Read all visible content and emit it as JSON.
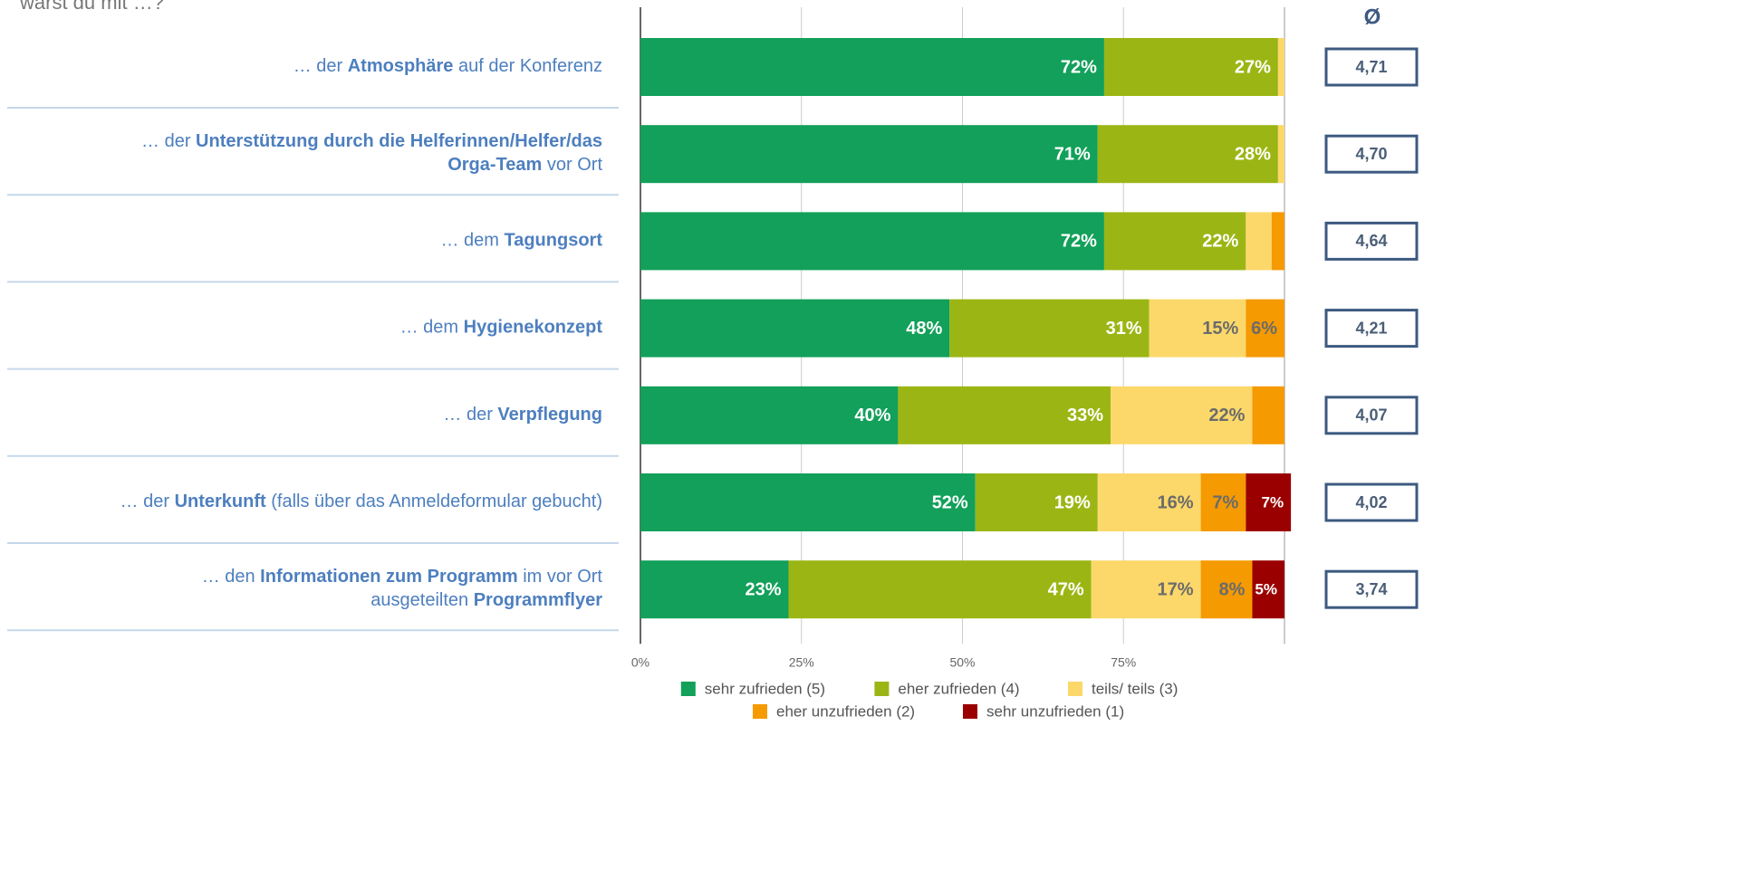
{
  "chart_data": {
    "type": "stacked_bar_horizontal",
    "title": "warst du mit …?",
    "categories": [
      [
        [
          {
            "text": "… der ",
            "bold": false
          },
          {
            "text": "Atmosphäre",
            "bold": true
          },
          {
            "text": " auf der Konferenz",
            "bold": false
          }
        ]
      ],
      [
        [
          {
            "text": "… der ",
            "bold": false
          },
          {
            "text": "Unterstützung durch die Helferinnen/Helfer/das",
            "bold": true
          }
        ],
        [
          {
            "text": "Orga-Team",
            "bold": true
          },
          {
            "text": " vor Ort",
            "bold": false
          }
        ]
      ],
      [
        [
          {
            "text": "… dem ",
            "bold": false
          },
          {
            "text": "Tagungsort",
            "bold": true
          }
        ]
      ],
      [
        [
          {
            "text": "… dem ",
            "bold": false
          },
          {
            "text": "Hygienekonzept",
            "bold": true
          }
        ]
      ],
      [
        [
          {
            "text": "… der ",
            "bold": false
          },
          {
            "text": "Verpflegung",
            "bold": true
          }
        ]
      ],
      [
        [
          {
            "text": "… der ",
            "bold": false
          },
          {
            "text": "Unterkunft",
            "bold": true
          },
          {
            "text": " (falls über das Anmeldeformular gebucht)",
            "bold": false
          }
        ]
      ],
      [
        [
          {
            "text": "… den ",
            "bold": false
          },
          {
            "text": "Informationen zum Programm",
            "bold": true
          },
          {
            "text": " im vor Ort",
            "bold": false
          }
        ],
        [
          {
            "text": "ausgeteilten ",
            "bold": false
          },
          {
            "text": "Programmflyer",
            "bold": true
          }
        ]
      ]
    ],
    "series": [
      {
        "name": "sehr zufrieden (5)",
        "color": "#12a05a",
        "label_color": "#ffffff",
        "values": [
          72,
          71,
          72,
          48,
          40,
          52,
          23
        ],
        "value_labels": [
          "72%",
          "71%",
          "72%",
          "48%",
          "40%",
          "52%",
          "23%"
        ]
      },
      {
        "name": "eher zufrieden (4)",
        "color": "#9bb614",
        "label_color": "#ffffff",
        "values": [
          27,
          28,
          22,
          31,
          33,
          19,
          47
        ],
        "value_labels": [
          "27%",
          "28%",
          "22%",
          "31%",
          "33%",
          "19%",
          "47%"
        ]
      },
      {
        "name": "teils/ teils (3)",
        "color": "#fcd86a",
        "label_color": "#6b6b6b",
        "values": [
          1,
          1,
          4,
          15,
          22,
          16,
          17
        ],
        "value_labels": [
          null,
          null,
          null,
          "15%",
          "22%",
          "16%",
          "17%"
        ]
      },
      {
        "name": "eher unzufrieden (2)",
        "color": "#f59a00",
        "label_color": "#6b6b6b",
        "values": [
          0,
          0,
          2,
          6,
          5,
          7,
          8
        ],
        "value_labels": [
          null,
          null,
          null,
          "6%",
          null,
          "7%",
          "8%"
        ]
      },
      {
        "name": "sehr unzufrieden (1)",
        "color": "#9b0000",
        "label_color": "#ffffff",
        "values": [
          0,
          0,
          0,
          0,
          0,
          7,
          5
        ],
        "value_labels": [
          null,
          null,
          null,
          null,
          null,
          "7%",
          "5%"
        ]
      }
    ],
    "average_header": "Ø",
    "averages": [
      "4,71",
      "4,70",
      "4,64",
      "4,21",
      "4,07",
      "4,02",
      "3,74"
    ],
    "xlim": [
      0,
      100
    ],
    "xticks": [
      {
        "value": 0,
        "label": "0%"
      },
      {
        "value": 25,
        "label": "25%"
      },
      {
        "value": 50,
        "label": "50%"
      },
      {
        "value": 75,
        "label": "75%"
      }
    ],
    "grid": true,
    "legend": "bottom"
  }
}
